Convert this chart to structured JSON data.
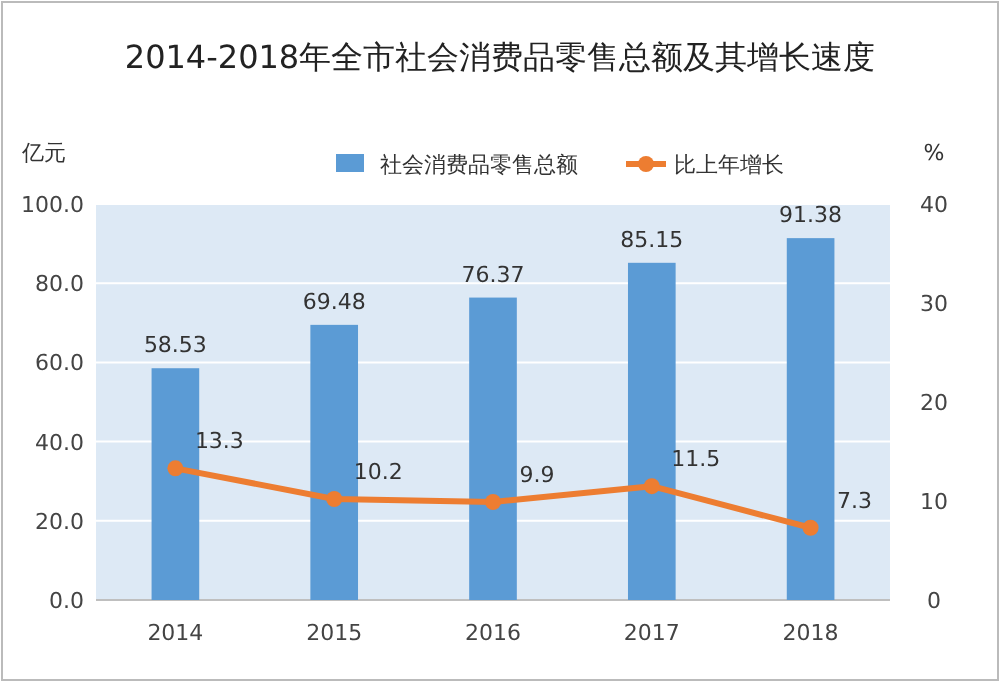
{
  "chart_data": {
    "type": "bar",
    "title": "2014-2018年全市社会消费品零售总额及其增长速度",
    "ylabel": "亿元",
    "y2label": "%",
    "categories": [
      "2014",
      "2015",
      "2016",
      "2017",
      "2018"
    ],
    "series": [
      {
        "name": "社会消费品零售总额",
        "color": "#5b9bd5",
        "values": [
          58.53,
          69.48,
          76.37,
          85.15,
          91.38
        ]
      },
      {
        "name": "比上年增长",
        "type": "line",
        "axis": "y2",
        "color": "#ed7d31",
        "marker": "circle",
        "line_style": "solid",
        "values": [
          13.3,
          10.2,
          9.9,
          11.5,
          7.3
        ]
      }
    ],
    "ylim": [
      0,
      100
    ],
    "yticks": [
      {
        "value": 0,
        "label": "0.0"
      },
      {
        "value": 20,
        "label": "20.0"
      },
      {
        "value": 40,
        "label": "40.0"
      },
      {
        "value": 60,
        "label": "60.0"
      },
      {
        "value": 80,
        "label": "80.0"
      },
      {
        "value": 100,
        "label": "100.0"
      }
    ],
    "y2lim": [
      0,
      40
    ],
    "y2ticks": [
      0,
      10,
      20,
      30,
      40
    ],
    "grid": "y",
    "legend": "top right",
    "data_labels": true
  }
}
